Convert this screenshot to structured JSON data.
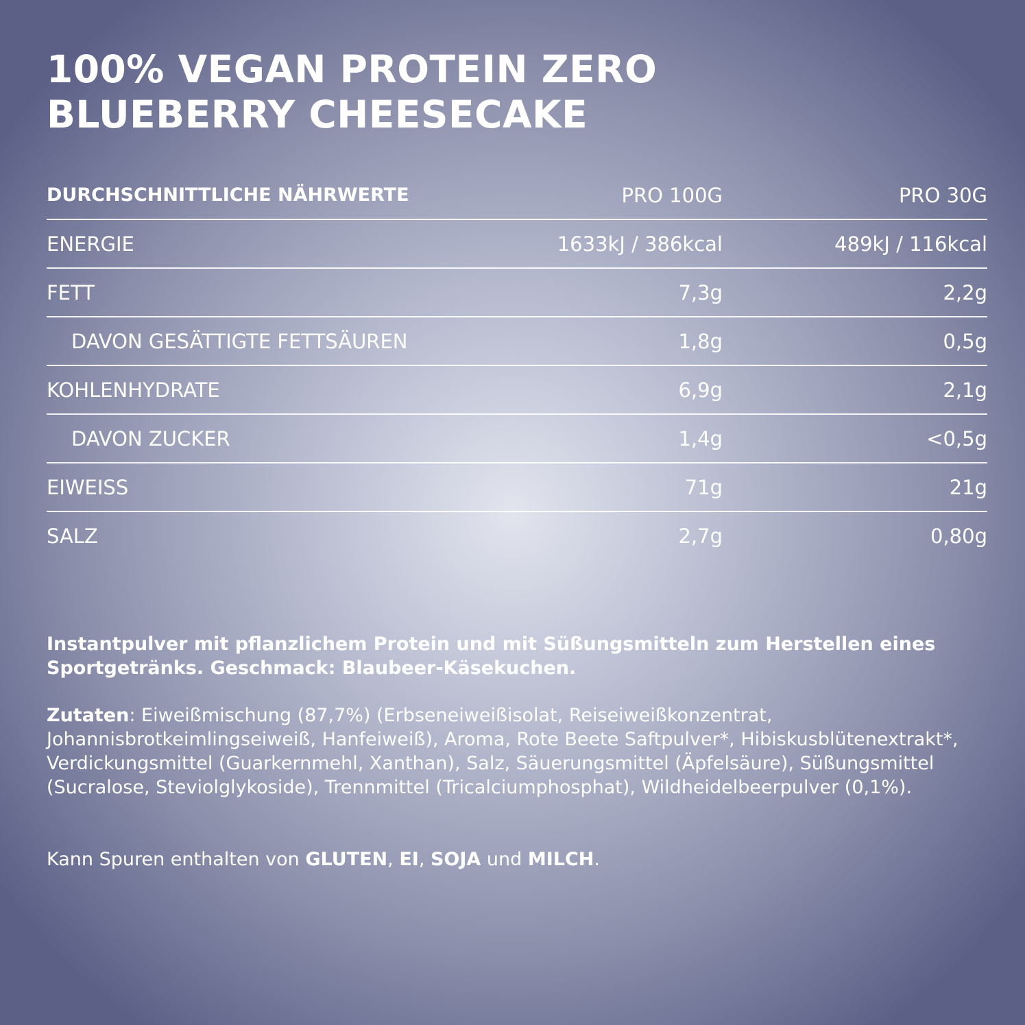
{
  "title": {
    "line1": "100% VEGAN PROTEIN ZERO",
    "line2": "BLUEBERRY CHEESECAKE"
  },
  "nutrition": {
    "header": {
      "label": "DURCHSCHNITTLICHE NÄHRWERTE",
      "per100": "PRO 100G",
      "per30": "PRO 30G"
    },
    "rows": [
      {
        "label": "ENERGIE",
        "per100": "1633kJ / 386kcal",
        "per30": "489kJ / 116kcal"
      },
      {
        "label": "FETT",
        "per100": "7,3g",
        "per30": "2,2g"
      },
      {
        "label": "DAVON GESÄTTIGTE  FETTSÄUREN",
        "per100": "1,8g",
        "per30": "0,5g"
      },
      {
        "label": "KOHLENHYDRATE",
        "per100": "6,9g",
        "per30": "2,1g"
      },
      {
        "label": "DAVON ZUCKER",
        "per100": "1,4g",
        "per30": "<0,5g"
      },
      {
        "label": "EIWEISS",
        "per100": "71g",
        "per30": "21g"
      },
      {
        "label": "SALZ",
        "per100": "2,7g",
        "per30": "0,80g"
      }
    ]
  },
  "description": "Instantpulver mit pflanzlichem Protein und mit Süßungsmitteln zum Herstellen eines Sportgetränks. Geschmack: Blaubeer-Käsekuchen.",
  "ingredients": {
    "label": "Zutaten",
    "text": ": Eiweißmischung (87,7%) (Erbseneiweißisolat, Reiseiweißkonzentrat, Johannisbrotkeimlingseiweiß, Hanfeiweiß), Aroma, Rote Beete Saftpulver*, Hibiskusblütenextrakt*, Verdickungsmittel (Guarkernmehl, Xanthan), Salz, Säuerungsmittel (Äpfelsäure), Süßungsmittel (Sucralose, Steviolglykoside), Trennmittel (Tricalciumphosphat), Wildheidelbeerpulver (0,1%)."
  },
  "traces": {
    "prefix": "Kann Spuren enthalten von ",
    "allergen1": "GLUTEN",
    "sep1": ", ",
    "allergen2": "EI",
    "sep2": ", ",
    "allergen3": "SOJA",
    "sep3": " und ",
    "allergen4": "MILCH",
    "suffix": "."
  }
}
